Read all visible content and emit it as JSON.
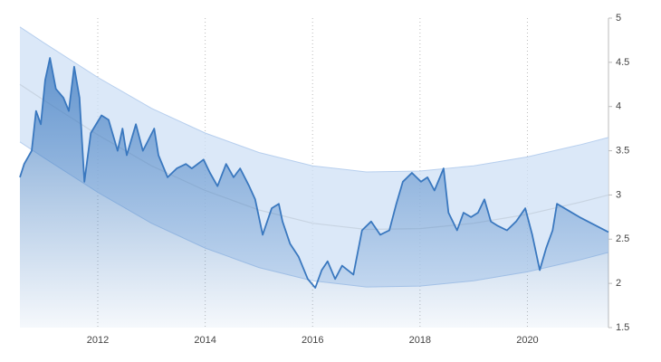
{
  "chart_data": {
    "type": "line",
    "x": [
      2010.55,
      2010.63,
      2010.77,
      2010.85,
      2010.94,
      2011.02,
      2011.11,
      2011.22,
      2011.36,
      2011.46,
      2011.56,
      2011.66,
      2011.75,
      2011.87,
      2012.07,
      2012.2,
      2012.37,
      2012.46,
      2012.54,
      2012.71,
      2012.84,
      2013.05,
      2013.13,
      2013.3,
      2013.47,
      2013.64,
      2013.75,
      2013.97,
      2014.09,
      2014.23,
      2014.39,
      2014.53,
      2014.65,
      2014.82,
      2014.93,
      2015.07,
      2015.24,
      2015.37,
      2015.44,
      2015.58,
      2015.74,
      2015.91,
      2016.05,
      2016.17,
      2016.28,
      2016.42,
      2016.55,
      2016.76,
      2016.92,
      2017.09,
      2017.26,
      2017.43,
      2017.56,
      2017.68,
      2017.85,
      2018.02,
      2018.14,
      2018.27,
      2018.44,
      2018.53,
      2018.69,
      2018.81,
      2018.95,
      2019.08,
      2019.2,
      2019.32,
      2019.45,
      2019.62,
      2019.79,
      2019.96,
      2020.09,
      2020.23,
      2020.35,
      2020.47,
      2020.55,
      2020.97,
      2021.51
    ],
    "values": [
      3.2,
      3.35,
      3.5,
      3.95,
      3.8,
      4.3,
      4.55,
      4.2,
      4.1,
      3.95,
      4.45,
      4.1,
      3.15,
      3.7,
      3.9,
      3.85,
      3.5,
      3.75,
      3.45,
      3.8,
      3.5,
      3.75,
      3.45,
      3.2,
      3.3,
      3.35,
      3.3,
      3.4,
      3.25,
      3.1,
      3.35,
      3.2,
      3.3,
      3.1,
      2.95,
      2.55,
      2.85,
      2.9,
      2.7,
      2.45,
      2.3,
      2.05,
      1.95,
      2.15,
      2.25,
      2.05,
      2.2,
      2.1,
      2.6,
      2.7,
      2.55,
      2.6,
      2.9,
      3.15,
      3.25,
      3.15,
      3.2,
      3.05,
      3.3,
      2.8,
      2.6,
      2.8,
      2.75,
      2.8,
      2.95,
      2.7,
      2.65,
      2.6,
      2.7,
      2.85,
      2.55,
      2.15,
      2.4,
      2.6,
      2.9,
      2.75,
      2.58
    ],
    "color": "#3a78bf",
    "band": {
      "x": [
        2010.55,
        2011,
        2012,
        2013,
        2014,
        2015,
        2016,
        2017,
        2018,
        2019,
        2020,
        2021,
        2021.51
      ],
      "upper": [
        4.9,
        4.72,
        4.33,
        3.98,
        3.7,
        3.48,
        3.33,
        3.26,
        3.27,
        3.33,
        3.43,
        3.57,
        3.65
      ],
      "trend": [
        4.25,
        4.07,
        3.68,
        3.33,
        3.05,
        2.83,
        2.68,
        2.61,
        2.62,
        2.68,
        2.78,
        2.92,
        3.0
      ],
      "lower": [
        3.6,
        3.42,
        3.03,
        2.68,
        2.4,
        2.18,
        2.03,
        1.96,
        1.97,
        2.03,
        2.13,
        2.27,
        2.35
      ]
    },
    "xlim": [
      2010.55,
      2021.51
    ],
    "xticks": [
      2012,
      2014,
      2016,
      2018,
      2020
    ],
    "ylim": [
      1.5,
      5
    ],
    "yticks": [
      1.5,
      2,
      2.5,
      3,
      3.5,
      4,
      4.5,
      5
    ],
    "grid": true
  }
}
